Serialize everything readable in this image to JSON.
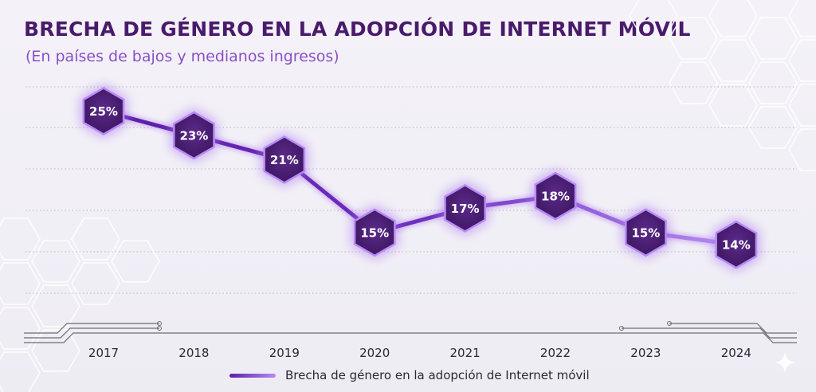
{
  "chart_data": {
    "type": "line",
    "title": "BRECHA DE GÉNERO EN LA ADOPCIÓN DE INTERNET MÓVIL",
    "subtitle": "(En países de bajos y medianos ingresos)",
    "categories": [
      "2017",
      "2018",
      "2019",
      "2020",
      "2021",
      "2022",
      "2023",
      "2024"
    ],
    "series": [
      {
        "name": "Brecha de género en la adopción de Internet móvil",
        "values": [
          25,
          23,
          21,
          15,
          17,
          18,
          15,
          14
        ],
        "labels": [
          "25%",
          "23%",
          "21%",
          "15%",
          "17%",
          "18%",
          "15%",
          "14%"
        ]
      }
    ],
    "xlabel": "",
    "ylabel": "",
    "ylim": [
      10,
      27
    ],
    "grid": true,
    "legend": "bottom-center"
  },
  "colors": {
    "title": "#4a1a6b",
    "subtitle": "#8a4fc7",
    "line_start": "#5b1fa6",
    "line_end": "#b58cf0",
    "marker_fill": "#4e2277",
    "marker_stroke": "#a774ee"
  }
}
